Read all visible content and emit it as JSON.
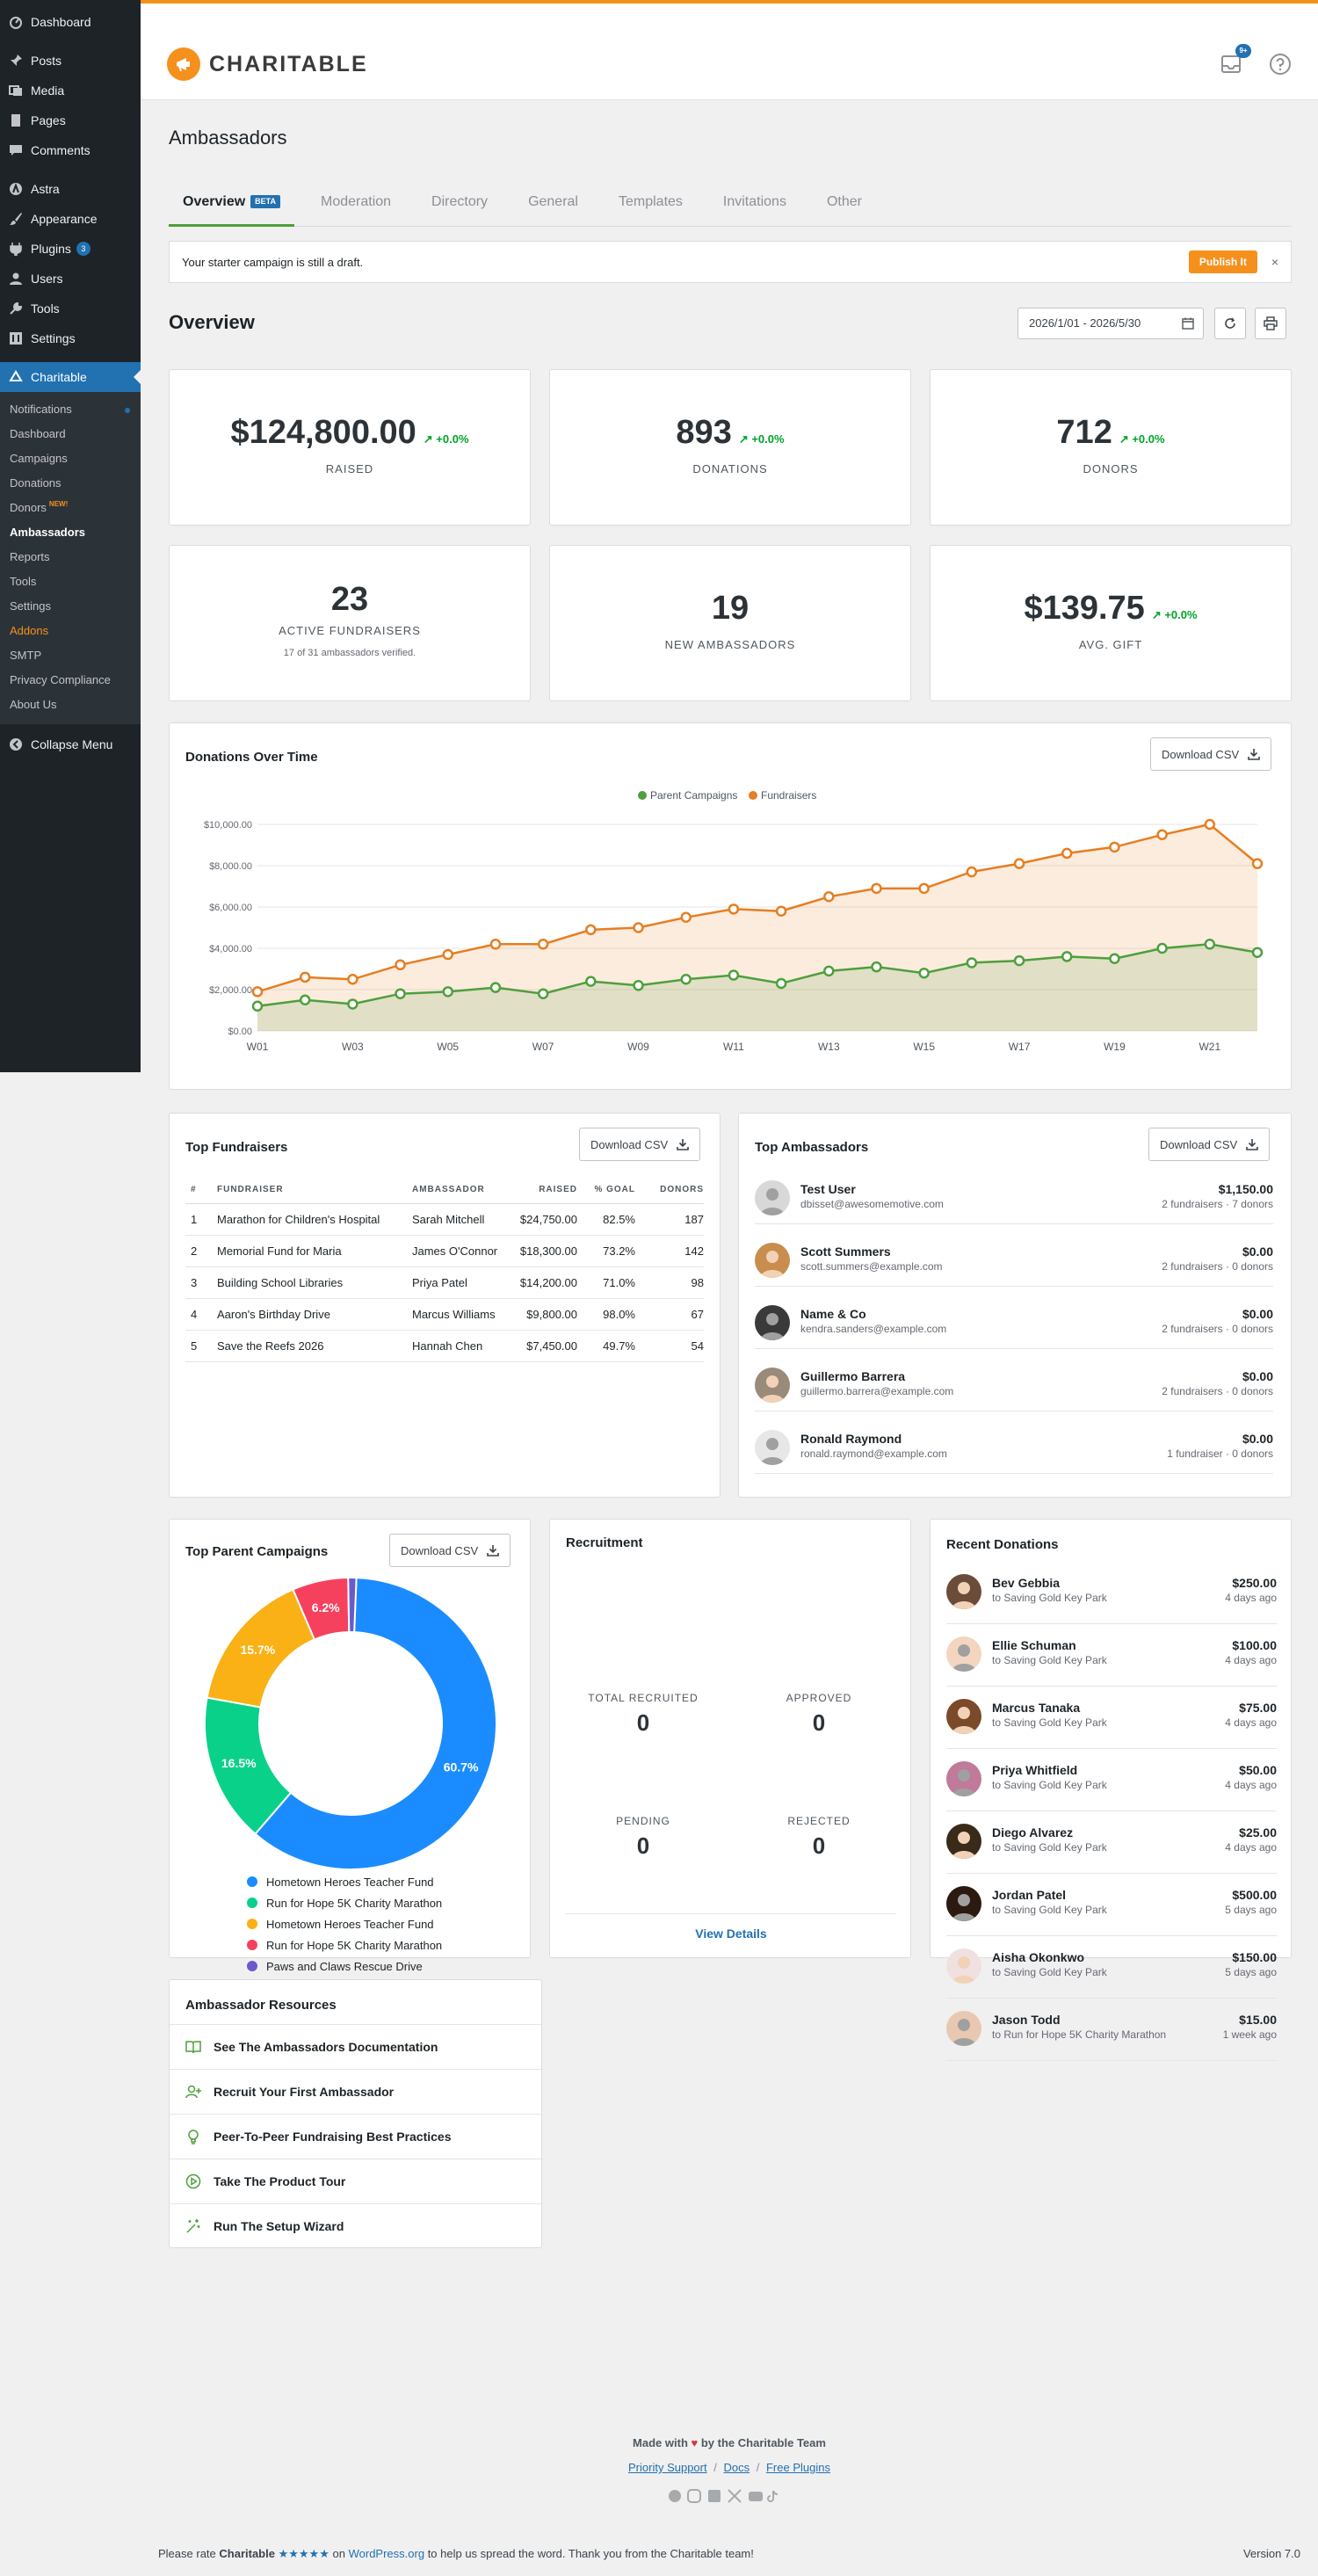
{
  "sidebar": {
    "menu": [
      {
        "label": "Dashboard",
        "icon": "dashboard-icon"
      },
      {
        "label": "Posts",
        "icon": "pin-icon"
      },
      {
        "label": "Media",
        "icon": "media-icon"
      },
      {
        "label": "Pages",
        "icon": "page-icon"
      },
      {
        "label": "Comments",
        "icon": "comment-icon"
      },
      {
        "label": "Astra",
        "icon": "astra-icon"
      },
      {
        "label": "Appearance",
        "icon": "brush-icon"
      },
      {
        "label": "Plugins",
        "icon": "plugin-icon",
        "badge": "3"
      },
      {
        "label": "Users",
        "icon": "user-icon"
      },
      {
        "label": "Tools",
        "icon": "wrench-icon"
      },
      {
        "label": "Settings",
        "icon": "settings-icon"
      }
    ],
    "current": "Charitable",
    "submenu": [
      "Notifications",
      "Dashboard",
      "Campaigns",
      "Donations",
      "Donors",
      "Ambassadors",
      "Reports",
      "Tools",
      "Settings",
      "Addons",
      "SMTP",
      "Privacy Compliance",
      "About Us"
    ],
    "new_tag": "NEW!",
    "collapse": "Collapse Menu"
  },
  "header": {
    "logo": "CHARITABLE",
    "notif_count": "9+"
  },
  "page": {
    "title": "Ambassadors",
    "tabs": [
      "Overview",
      "Moderation",
      "Directory",
      "General",
      "Templates",
      "Invitations",
      "Other"
    ],
    "beta": "BETA"
  },
  "notice": {
    "text": "Your starter campaign is still a draft.",
    "button": "Publish It",
    "close": "×"
  },
  "overview": {
    "title": "Overview",
    "date_range": "2026/1/01 - 2026/5/30"
  },
  "stats": [
    {
      "value": "$124,800.00",
      "trend": "+0.0%",
      "label": "RAISED"
    },
    {
      "value": "893",
      "trend": "+0.0%",
      "label": "DONATIONS"
    },
    {
      "value": "712",
      "trend": "+0.0%",
      "label": "DONORS"
    },
    {
      "value": "23",
      "label": "ACTIVE FUNDRAISERS",
      "sub": "17 of 31 ambassadors verified."
    },
    {
      "value": "19",
      "label": "NEW AMBASSADORS"
    },
    {
      "value": "$139.75",
      "trend": "+0.0%",
      "label": "AVG. GIFT"
    }
  ],
  "download_csv": "Download CSV",
  "chart_data": {
    "type": "area",
    "title": "Donations Over Time",
    "x": [
      "W01",
      "W02",
      "W03",
      "W04",
      "W05",
      "W06",
      "W07",
      "W08",
      "W09",
      "W10",
      "W11",
      "W12",
      "W13",
      "W14",
      "W15",
      "W16",
      "W17",
      "W18",
      "W19",
      "W20",
      "W21",
      "W22"
    ],
    "xticks": [
      "W01",
      "W03",
      "W05",
      "W07",
      "W09",
      "W11",
      "W13",
      "W15",
      "W17",
      "W19",
      "W21"
    ],
    "yticks": [
      "$0.00",
      "$2,000.00",
      "$4,000.00",
      "$6,000.00",
      "$8,000.00",
      "$10,000.00"
    ],
    "ylim": [
      0,
      10000
    ],
    "series": [
      {
        "name": "Parent Campaigns",
        "color": "#4e9f3d",
        "values": [
          1200,
          1500,
          1300,
          1800,
          1900,
          2100,
          1800,
          2400,
          2200,
          2500,
          2700,
          2300,
          2900,
          3100,
          2800,
          3300,
          3400,
          3600,
          3500,
          4000,
          4200,
          3800
        ]
      },
      {
        "name": "Fundraisers",
        "color": "#e67e22",
        "values": [
          1900,
          2600,
          2500,
          3200,
          3700,
          4200,
          4200,
          4900,
          5000,
          5500,
          5900,
          5800,
          6500,
          6900,
          6900,
          7700,
          8100,
          8600,
          8900,
          9500,
          10000,
          8100
        ]
      }
    ]
  },
  "top_fundraisers": {
    "title": "Top Fundraisers",
    "columns": [
      "#",
      "FUNDRAISER",
      "AMBASSADOR",
      "RAISED",
      "% GOAL",
      "DONORS"
    ],
    "rows": [
      [
        "1",
        "Marathon for Children's Hospital",
        "Sarah Mitchell",
        "$24,750.00",
        "82.5%",
        "187"
      ],
      [
        "2",
        "Memorial Fund for Maria",
        "James O'Connor",
        "$18,300.00",
        "73.2%",
        "142"
      ],
      [
        "3",
        "Building School Libraries",
        "Priya Patel",
        "$14,200.00",
        "71.0%",
        "98"
      ],
      [
        "4",
        "Aaron's Birthday Drive",
        "Marcus Williams",
        "$9,800.00",
        "98.0%",
        "67"
      ],
      [
        "5",
        "Save the Reefs 2026",
        "Hannah Chen",
        "$7,450.00",
        "49.7%",
        "54"
      ]
    ]
  },
  "top_ambassadors": {
    "title": "Top Ambassadors",
    "rows": [
      {
        "name": "Test User",
        "email": "dbisset@awesomemotive.com",
        "amount": "$1,150.00",
        "meta": "2 fundraisers · 7 donors"
      },
      {
        "name": "Scott Summers",
        "email": "scott.summers@example.com",
        "amount": "$0.00",
        "meta": "2 fundraisers · 0 donors"
      },
      {
        "name": "Name & Co",
        "email": "kendra.sanders@example.com",
        "amount": "$0.00",
        "meta": "2 fundraisers · 0 donors"
      },
      {
        "name": "Guillermo Barrera",
        "email": "guillermo.barrera@example.com",
        "amount": "$0.00",
        "meta": "2 fundraisers · 0 donors"
      },
      {
        "name": "Ronald Raymond",
        "email": "ronald.raymond@example.com",
        "amount": "$0.00",
        "meta": "1 fundraiser · 0 donors"
      }
    ]
  },
  "top_parent_campaigns": {
    "title": "Top Parent Campaigns",
    "chart_data": {
      "type": "pie",
      "slices": [
        {
          "name": "Hometown Heroes Teacher Fund",
          "value": 60.7,
          "label": "60.7%",
          "color": "#1a8cff"
        },
        {
          "name": "Run for Hope 5K Charity Marathon",
          "value": 16.5,
          "label": "16.5%",
          "color": "#0ad18a"
        },
        {
          "name": "Hometown Heroes Teacher Fund",
          "value": 15.7,
          "label": "15.7%",
          "color": "#f9b115"
        },
        {
          "name": "Run for Hope 5K Charity Marathon",
          "value": 6.2,
          "label": "6.2%",
          "color": "#f5415d"
        },
        {
          "name": "Paws and Claws Rescue Drive",
          "value": 0.9,
          "label": "",
          "color": "#6a5acd"
        }
      ]
    }
  },
  "recruitment": {
    "title": "Recruitment",
    "stats": [
      {
        "label": "TOTAL RECRUITED",
        "value": "0"
      },
      {
        "label": "APPROVED",
        "value": "0"
      },
      {
        "label": "PENDING",
        "value": "0"
      },
      {
        "label": "REJECTED",
        "value": "0"
      }
    ],
    "link": "View Details"
  },
  "recent_donations": {
    "title": "Recent Donations",
    "rows": [
      {
        "name": "Bev Gebbia",
        "campaign": "to Saving Gold Key Park",
        "amount": "$250.00",
        "date": "4 days ago"
      },
      {
        "name": "Ellie Schuman",
        "campaign": "to Saving Gold Key Park",
        "amount": "$100.00",
        "date": "4 days ago"
      },
      {
        "name": "Marcus Tanaka",
        "campaign": "to Saving Gold Key Park",
        "amount": "$75.00",
        "date": "4 days ago"
      },
      {
        "name": "Priya Whitfield",
        "campaign": "to Saving Gold Key Park",
        "amount": "$50.00",
        "date": "4 days ago"
      },
      {
        "name": "Diego Alvarez",
        "campaign": "to Saving Gold Key Park",
        "amount": "$25.00",
        "date": "4 days ago"
      },
      {
        "name": "Jordan Patel",
        "campaign": "to Saving Gold Key Park",
        "amount": "$500.00",
        "date": "5 days ago"
      },
      {
        "name": "Aisha Okonkwo",
        "campaign": "to Saving Gold Key Park",
        "amount": "$150.00",
        "date": "5 days ago"
      },
      {
        "name": "Jason Todd",
        "campaign": "to Run for Hope 5K Charity Marathon",
        "amount": "$15.00",
        "date": "1 week ago"
      }
    ]
  },
  "resources": {
    "title": "Ambassador Resources",
    "items": [
      "See The Ambassadors Documentation",
      "Recruit Your First Ambassador",
      "Peer-To-Peer Fundraising Best Practices",
      "Take The Product Tour",
      "Run The Setup Wizard"
    ]
  },
  "footer": {
    "made_with_prefix": "Made with",
    "made_with_suffix": "by the Charitable Team",
    "links": [
      "Priority Support",
      "Docs",
      "Free Plugins"
    ],
    "rate_prefix": "Please rate",
    "rate_brand": "Charitable",
    "rate_stars": "★★★★★",
    "rate_on": "on",
    "rate_site": "WordPress.org",
    "rate_suffix": "to help us spread the word. Thank you from the Charitable team!",
    "version": "Version 7.0"
  }
}
